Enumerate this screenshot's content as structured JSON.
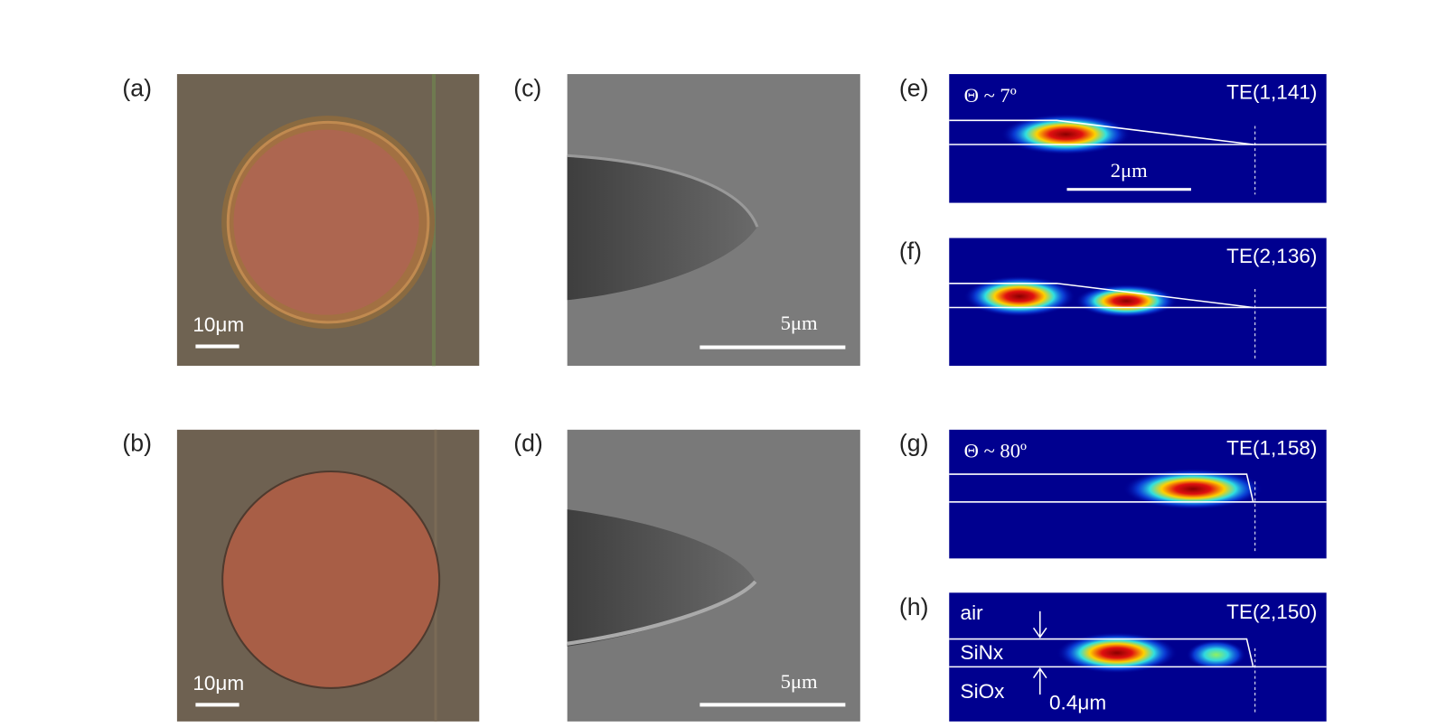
{
  "panels": [
    {
      "label": "(a)",
      "scale_bar": "10μm"
    },
    {
      "label": "(b)",
      "scale_bar": "10μm"
    },
    {
      "label": "(c)",
      "scale_bar": "5μm"
    },
    {
      "label": "(d)",
      "scale_bar": "5μm"
    },
    {
      "label": "(e)",
      "angle": "Θ ~ 7º",
      "mode": "TE(1,141)",
      "scale_bar": "2μm"
    },
    {
      "label": "(f)",
      "mode": "TE(2,136)"
    },
    {
      "label": "(g)",
      "angle": "Θ ~ 80º",
      "mode": "TE(1,158)"
    },
    {
      "label": "(h)",
      "mode": "TE(2,150)",
      "layers": [
        "air",
        "SiNx",
        "SiOx"
      ],
      "thickness": "0.4μm"
    }
  ]
}
